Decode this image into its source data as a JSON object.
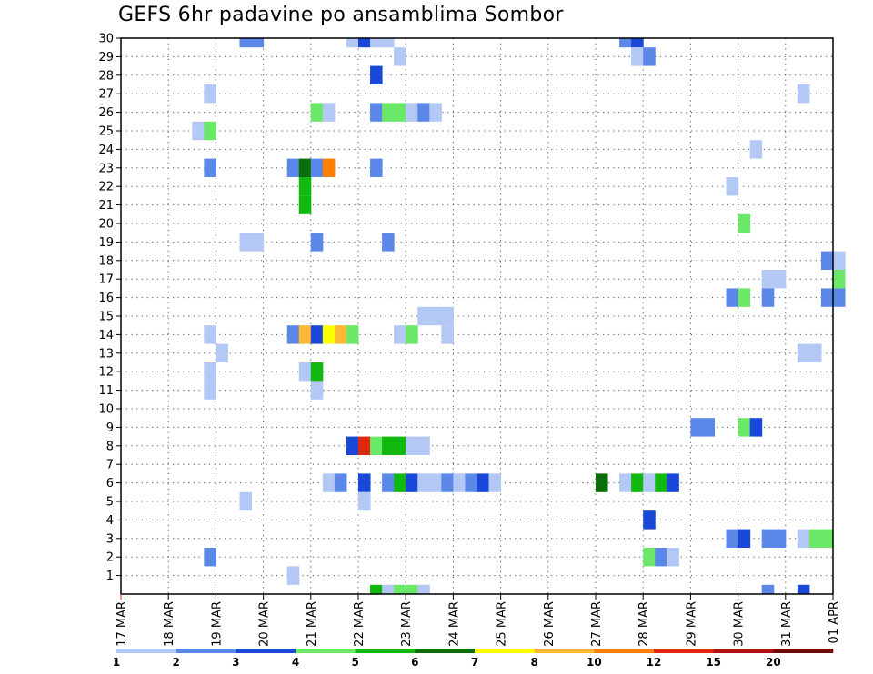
{
  "chart_data": {
    "type": "heatmap",
    "title": "GEFS 6hr padavine po ansamblima Sombor",
    "x_axis": {
      "tick_labels": [
        "17 MAR",
        "18 MAR",
        "19 MAR",
        "20 MAR",
        "21 MAR",
        "22 MAR",
        "23 MAR",
        "24 MAR",
        "25 MAR",
        "26 MAR",
        "27 MAR",
        "28 MAR",
        "29 MAR",
        "30 MAR",
        "31 MAR",
        "01 APR"
      ],
      "range_days": [
        0,
        15
      ],
      "step_hours": 6
    },
    "y_axis": {
      "label": "",
      "tick_labels": [
        "1",
        "2",
        "3",
        "4",
        "5",
        "6",
        "7",
        "8",
        "9",
        "10",
        "11",
        "12",
        "13",
        "14",
        "15",
        "16",
        "17",
        "18",
        "19",
        "20",
        "21",
        "22",
        "23",
        "24",
        "25",
        "26",
        "27",
        "28",
        "29",
        "30"
      ],
      "range": [
        0,
        30
      ]
    },
    "grid": true,
    "colorbar": {
      "placement": "bottom",
      "labels": [
        "1",
        "2",
        "3",
        "4",
        "5",
        "6",
        "7",
        "8",
        "10",
        "12",
        "15",
        "20"
      ],
      "colors": [
        "#b3c8f5",
        "#5b88e8",
        "#1a48d8",
        "#6ce868",
        "#10b810",
        "#0a6e0a",
        "#ffff00",
        "#ffb834",
        "#ff8000",
        "#e02810",
        "#b01010",
        "#700808"
      ]
    },
    "cells": [
      {
        "member": 30,
        "day": 2.5,
        "level": 2
      },
      {
        "member": 30,
        "day": 2.75,
        "level": 2
      },
      {
        "member": 30,
        "day": 4.75,
        "level": 1
      },
      {
        "member": 30,
        "day": 5.0,
        "level": 3
      },
      {
        "member": 30,
        "day": 5.25,
        "level": 1
      },
      {
        "member": 30,
        "day": 5.5,
        "level": 1
      },
      {
        "member": 30,
        "day": 10.5,
        "level": 2
      },
      {
        "member": 30,
        "day": 10.75,
        "level": 3
      },
      {
        "member": 29,
        "day": 5.75,
        "level": 1
      },
      {
        "member": 29,
        "day": 10.75,
        "level": 1
      },
      {
        "member": 29,
        "day": 11.0,
        "level": 2
      },
      {
        "member": 28,
        "day": 5.25,
        "level": 3
      },
      {
        "member": 27,
        "day": 1.75,
        "level": 1
      },
      {
        "member": 27,
        "day": 14.25,
        "level": 1
      },
      {
        "member": 26,
        "day": 4.0,
        "level": 4
      },
      {
        "member": 26,
        "day": 4.25,
        "level": 1
      },
      {
        "member": 26,
        "day": 5.25,
        "level": 2
      },
      {
        "member": 26,
        "day": 5.5,
        "level": 4
      },
      {
        "member": 26,
        "day": 5.75,
        "level": 4
      },
      {
        "member": 26,
        "day": 6.0,
        "level": 1
      },
      {
        "member": 26,
        "day": 6.25,
        "level": 2
      },
      {
        "member": 26,
        "day": 6.5,
        "level": 1
      },
      {
        "member": 25,
        "day": 1.5,
        "level": 1
      },
      {
        "member": 25,
        "day": 1.75,
        "level": 4
      },
      {
        "member": 24,
        "day": 13.25,
        "level": 1
      },
      {
        "member": 23,
        "day": 1.75,
        "level": 2
      },
      {
        "member": 23,
        "day": 3.5,
        "level": 2
      },
      {
        "member": 23,
        "day": 3.75,
        "level": 6
      },
      {
        "member": 23,
        "day": 4.0,
        "level": 2
      },
      {
        "member": 23,
        "day": 4.25,
        "level": 9
      },
      {
        "member": 23,
        "day": 5.25,
        "level": 2
      },
      {
        "member": 22,
        "day": 3.75,
        "level": 5
      },
      {
        "member": 22,
        "day": 12.75,
        "level": 1
      },
      {
        "member": 21,
        "day": 3.75,
        "level": 5
      },
      {
        "member": 20,
        "day": 13.0,
        "level": 4
      },
      {
        "member": 19,
        "day": 4.0,
        "level": 2
      },
      {
        "member": 19,
        "day": 2.5,
        "level": 1
      },
      {
        "member": 19,
        "day": 2.75,
        "level": 1
      },
      {
        "member": 19,
        "day": 5.5,
        "level": 2
      },
      {
        "member": 18,
        "day": 14.75,
        "level": 2
      },
      {
        "member": 18,
        "day": 15.0,
        "level": 1
      },
      {
        "member": 17,
        "day": 13.5,
        "level": 1
      },
      {
        "member": 17,
        "day": 13.75,
        "level": 1
      },
      {
        "member": 17,
        "day": 15.0,
        "level": 4
      },
      {
        "member": 16,
        "day": 12.75,
        "level": 2
      },
      {
        "member": 16,
        "day": 13.0,
        "level": 4
      },
      {
        "member": 16,
        "day": 13.5,
        "level": 2
      },
      {
        "member": 16,
        "day": 14.75,
        "level": 2
      },
      {
        "member": 16,
        "day": 15.0,
        "level": 2
      },
      {
        "member": 15,
        "day": 6.25,
        "level": 1
      },
      {
        "member": 15,
        "day": 6.5,
        "level": 1
      },
      {
        "member": 15,
        "day": 6.75,
        "level": 1
      },
      {
        "member": 14,
        "day": 1.75,
        "level": 1
      },
      {
        "member": 14,
        "day": 3.5,
        "level": 2
      },
      {
        "member": 14,
        "day": 3.75,
        "level": 8
      },
      {
        "member": 14,
        "day": 4.0,
        "level": 3
      },
      {
        "member": 14,
        "day": 4.25,
        "level": 7
      },
      {
        "member": 14,
        "day": 4.5,
        "level": 8
      },
      {
        "member": 14,
        "day": 4.75,
        "level": 4
      },
      {
        "member": 14,
        "day": 5.75,
        "level": 1
      },
      {
        "member": 14,
        "day": 6.0,
        "level": 4
      },
      {
        "member": 14,
        "day": 6.75,
        "level": 1
      },
      {
        "member": 13,
        "day": 2.0,
        "level": 1
      },
      {
        "member": 13,
        "day": 14.25,
        "level": 1
      },
      {
        "member": 13,
        "day": 14.5,
        "level": 1
      },
      {
        "member": 12,
        "day": 1.75,
        "level": 1
      },
      {
        "member": 12,
        "day": 3.75,
        "level": 1
      },
      {
        "member": 12,
        "day": 4.0,
        "level": 5
      },
      {
        "member": 11,
        "day": 1.75,
        "level": 1
      },
      {
        "member": 11,
        "day": 4.0,
        "level": 1
      },
      {
        "member": 9,
        "day": 12.0,
        "level": 2
      },
      {
        "member": 9,
        "day": 12.25,
        "level": 2
      },
      {
        "member": 9,
        "day": 13.0,
        "level": 4
      },
      {
        "member": 9,
        "day": 13.25,
        "level": 3
      },
      {
        "member": 8,
        "day": 4.75,
        "level": 3
      },
      {
        "member": 8,
        "day": 5.0,
        "level": 10
      },
      {
        "member": 8,
        "day": 5.25,
        "level": 4
      },
      {
        "member": 8,
        "day": 5.5,
        "level": 5
      },
      {
        "member": 8,
        "day": 5.75,
        "level": 5
      },
      {
        "member": 8,
        "day": 6.0,
        "level": 1
      },
      {
        "member": 8,
        "day": 6.25,
        "level": 1
      },
      {
        "member": 6,
        "day": 4.25,
        "level": 1
      },
      {
        "member": 6,
        "day": 4.5,
        "level": 2
      },
      {
        "member": 6,
        "day": 5.0,
        "level": 3
      },
      {
        "member": 6,
        "day": 5.5,
        "level": 2
      },
      {
        "member": 6,
        "day": 5.75,
        "level": 5
      },
      {
        "member": 6,
        "day": 6.0,
        "level": 3
      },
      {
        "member": 6,
        "day": 6.25,
        "level": 1
      },
      {
        "member": 6,
        "day": 6.5,
        "level": 1
      },
      {
        "member": 6,
        "day": 6.75,
        "level": 2
      },
      {
        "member": 6,
        "day": 7.0,
        "level": 1
      },
      {
        "member": 6,
        "day": 7.25,
        "level": 2
      },
      {
        "member": 6,
        "day": 7.5,
        "level": 3
      },
      {
        "member": 6,
        "day": 7.75,
        "level": 1
      },
      {
        "member": 6,
        "day": 10.0,
        "level": 6
      },
      {
        "member": 6,
        "day": 10.5,
        "level": 1
      },
      {
        "member": 6,
        "day": 10.75,
        "level": 5
      },
      {
        "member": 6,
        "day": 11.0,
        "level": 1
      },
      {
        "member": 6,
        "day": 11.25,
        "level": 5
      },
      {
        "member": 6,
        "day": 11.5,
        "level": 3
      },
      {
        "member": 5,
        "day": 2.5,
        "level": 1
      },
      {
        "member": 5,
        "day": 5.0,
        "level": 1
      },
      {
        "member": 4,
        "day": 11.0,
        "level": 3
      },
      {
        "member": 3,
        "day": 12.75,
        "level": 2
      },
      {
        "member": 3,
        "day": 13.0,
        "level": 3
      },
      {
        "member": 3,
        "day": 13.5,
        "level": 2
      },
      {
        "member": 3,
        "day": 13.75,
        "level": 2
      },
      {
        "member": 3,
        "day": 14.25,
        "level": 1
      },
      {
        "member": 3,
        "day": 14.5,
        "level": 4
      },
      {
        "member": 3,
        "day": 14.75,
        "level": 4
      },
      {
        "member": 2,
        "day": 1.75,
        "level": 2
      },
      {
        "member": 2,
        "day": 11.0,
        "level": 4
      },
      {
        "member": 2,
        "day": 11.25,
        "level": 2
      },
      {
        "member": 2,
        "day": 11.5,
        "level": 1
      },
      {
        "member": 1,
        "day": 3.5,
        "level": 1
      },
      {
        "member": 0,
        "day": 5.25,
        "level": 5
      },
      {
        "member": 0,
        "day": 5.5,
        "level": 1
      },
      {
        "member": 0,
        "day": 5.75,
        "level": 4
      },
      {
        "member": 0,
        "day": 6.0,
        "level": 4
      },
      {
        "member": 0,
        "day": 6.25,
        "level": 1
      },
      {
        "member": 0,
        "day": 13.5,
        "level": 2
      },
      {
        "member": 0,
        "day": 14.25,
        "level": 3
      }
    ]
  }
}
